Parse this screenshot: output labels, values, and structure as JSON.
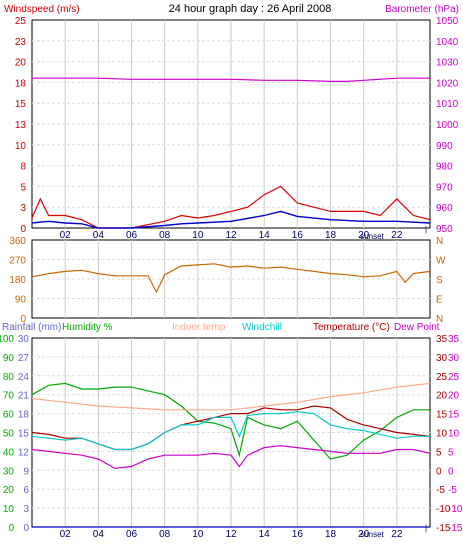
{
  "chart_data": [
    {
      "id": "wind_baro",
      "type": "line",
      "title": "24 hour graph day : 26 April 2008",
      "ylabel_left": "Windspeed (m/s)",
      "ylabel_right": "Barometer (hPa)",
      "y_left_ticks": [
        "25",
        "23",
        "20",
        "18",
        "15",
        "13",
        "10",
        "8",
        "5",
        "3",
        "0"
      ],
      "y_right_ticks": [
        "1050",
        "1040",
        "1030",
        "1020",
        "1010",
        "1000",
        "990",
        "980",
        "970",
        "960",
        "950"
      ],
      "x_ticks": [
        "02",
        "04",
        "06",
        "08",
        "10",
        "12",
        "14",
        "16",
        "18",
        "20",
        "22"
      ],
      "x_extra_label": "sunset",
      "ylim_left": [
        0,
        25
      ],
      "ylim_right": [
        950,
        1050
      ],
      "xlim": [
        0,
        24
      ],
      "grid": true,
      "series": [
        {
          "color": "#cc00cc",
          "x": [
            0,
            2,
            4,
            6,
            8,
            10,
            12,
            14,
            16,
            18,
            19,
            20,
            22,
            24
          ],
          "values": [
            1022,
            1022,
            1022,
            1021.5,
            1021.5,
            1021.5,
            1021.5,
            1021,
            1021,
            1020.5,
            1020.5,
            1021,
            1022,
            1022
          ]
        },
        {
          "color": "#dd0000",
          "x": [
            0,
            0.5,
            1,
            2,
            3,
            4,
            6,
            8,
            9,
            10,
            11,
            12,
            13,
            14,
            15,
            16,
            17,
            18,
            19,
            20,
            21,
            22,
            23,
            24
          ],
          "values": [
            1.2,
            3.5,
            1.5,
            1.5,
            1,
            0,
            0,
            0.8,
            1.5,
            1.2,
            1.5,
            2,
            2.5,
            4,
            5,
            3,
            2.5,
            2,
            2,
            2,
            1.5,
            3.5,
            1.5,
            1
          ]
        },
        {
          "color": "#0000cc",
          "x": [
            0,
            1,
            2,
            3,
            4,
            6,
            8,
            9,
            10,
            12,
            14,
            15,
            16,
            18,
            20,
            22,
            24
          ],
          "values": [
            0.6,
            0.8,
            0.6,
            0.5,
            0,
            0,
            0.3,
            0.5,
            0.6,
            0.8,
            1.5,
            2,
            1.4,
            1,
            0.8,
            0.8,
            0.6
          ]
        }
      ]
    },
    {
      "id": "wind_dir",
      "type": "line",
      "y_left_ticks": [
        "360",
        "270",
        "180",
        "90",
        "0"
      ],
      "y_right_ticks": [
        "N",
        "W",
        "S",
        "E",
        "N"
      ],
      "ylim": [
        0,
        360
      ],
      "xlim": [
        0,
        24
      ],
      "grid": true,
      "series": [
        {
          "color": "#cc6600",
          "x": [
            0,
            1,
            2,
            3,
            4,
            5,
            6,
            7,
            7.5,
            8,
            9,
            10,
            11,
            12,
            13,
            14,
            15,
            16,
            17,
            18,
            19,
            20,
            21,
            22,
            22.5,
            23,
            24
          ],
          "values": [
            190,
            205,
            215,
            220,
            205,
            195,
            195,
            195,
            120,
            200,
            240,
            245,
            250,
            235,
            240,
            230,
            235,
            225,
            215,
            205,
            200,
            190,
            195,
            215,
            165,
            205,
            215
          ]
        }
      ]
    },
    {
      "id": "temp_hum",
      "type": "line",
      "legend": [
        "Rainfall (mm)",
        "Humidity %",
        "Indoor temp",
        "Windchill",
        "Temperature (°C)",
        "Dew Point"
      ],
      "legend_colors": [
        "#6666cc",
        "#00aa00",
        "#ffaa88",
        "#00cccc",
        "#aa0000",
        "#cc00cc"
      ],
      "y_rain_ticks": [
        "30",
        "27",
        "24",
        "21",
        "18",
        "15",
        "12",
        "9",
        "6",
        "3",
        "0"
      ],
      "y_hum_ticks": [
        "100",
        "90",
        "80",
        "70",
        "60",
        "50",
        "40",
        "30",
        "20",
        "10",
        "0"
      ],
      "y_right_ticks": [
        "35",
        "30",
        "25",
        "20",
        "15",
        "10",
        "5",
        "0",
        "-5",
        "-10",
        "-15"
      ],
      "x_ticks": [
        "02",
        "04",
        "06",
        "08",
        "10",
        "12",
        "14",
        "16",
        "18",
        "20",
        "22"
      ],
      "x_extra_label": "sunset",
      "ylim_temp": [
        -15,
        35
      ],
      "ylim_humidity": [
        0,
        100
      ],
      "xlim": [
        0,
        24
      ],
      "grid": true,
      "series": [
        {
          "name": "Humidity %",
          "color": "#00aa00",
          "axis": "humidity",
          "x": [
            0,
            1,
            2,
            3,
            4,
            5,
            6,
            7,
            8,
            9,
            10,
            11,
            12,
            12.5,
            13,
            14,
            15,
            16,
            17,
            18,
            19,
            20,
            21,
            22,
            23,
            24
          ],
          "values": [
            70,
            75,
            76,
            73,
            73,
            74,
            74,
            72,
            70,
            64,
            56,
            55,
            52,
            38,
            58,
            54,
            52,
            56,
            46,
            36,
            38,
            46,
            51,
            58,
            62,
            62
          ]
        },
        {
          "name": "Indoor temp",
          "color": "#ffaa88",
          "axis": "temp",
          "x": [
            0,
            2,
            4,
            6,
            8,
            10,
            12,
            14,
            16,
            18,
            20,
            22,
            24
          ],
          "values": [
            19,
            18,
            17,
            16.5,
            16,
            16,
            16,
            17,
            18,
            19.5,
            20.5,
            22,
            23
          ]
        },
        {
          "name": "Temperature (°C)",
          "color": "#aa0000",
          "axis": "temp",
          "x": [
            0,
            1,
            2,
            3,
            4,
            5,
            6,
            7,
            8,
            9,
            10,
            11,
            12,
            13,
            14,
            15,
            16,
            17,
            18,
            19,
            20,
            21,
            22,
            23,
            24
          ],
          "values": [
            10,
            9.5,
            8.5,
            8.5,
            7,
            5.5,
            5.5,
            7,
            10,
            12,
            13,
            14,
            15,
            15,
            16.5,
            16,
            16,
            17,
            16.5,
            13.5,
            12,
            11,
            10,
            9.5,
            9
          ]
        },
        {
          "name": "Windchill",
          "color": "#00cccc",
          "axis": "temp",
          "x": [
            0,
            1,
            2,
            3,
            4,
            5,
            6,
            7,
            8,
            9,
            10,
            11,
            12,
            12.5,
            13,
            14,
            15,
            16,
            17,
            18,
            19,
            20,
            21,
            22,
            23,
            24
          ],
          "values": [
            9,
            8.5,
            8,
            8.5,
            7,
            5.5,
            5.5,
            7,
            10,
            12,
            12,
            14,
            14,
            9,
            14.5,
            15,
            15,
            15.5,
            15,
            12,
            11,
            10.5,
            9.5,
            8.5,
            9,
            9
          ]
        },
        {
          "name": "Dew Point",
          "color": "#cc00cc",
          "axis": "temp",
          "x": [
            0,
            1,
            2,
            3,
            4,
            5,
            6,
            7,
            8,
            9,
            10,
            11,
            12,
            12.5,
            13,
            14,
            15,
            16,
            17,
            18,
            19,
            20,
            21,
            22,
            23,
            24
          ],
          "values": [
            5.5,
            5,
            4.5,
            4,
            3,
            0.5,
            1,
            3,
            4,
            4,
            4,
            4.5,
            4,
            1,
            4,
            6,
            6.5,
            6,
            5.5,
            5,
            4.5,
            4.5,
            4.5,
            5.5,
            5.5,
            4.5
          ]
        },
        {
          "name": "Rainfall (mm)",
          "color": "#0000cc",
          "axis": "rain",
          "x": [
            0,
            24
          ],
          "values": [
            0,
            0
          ]
        }
      ]
    }
  ]
}
